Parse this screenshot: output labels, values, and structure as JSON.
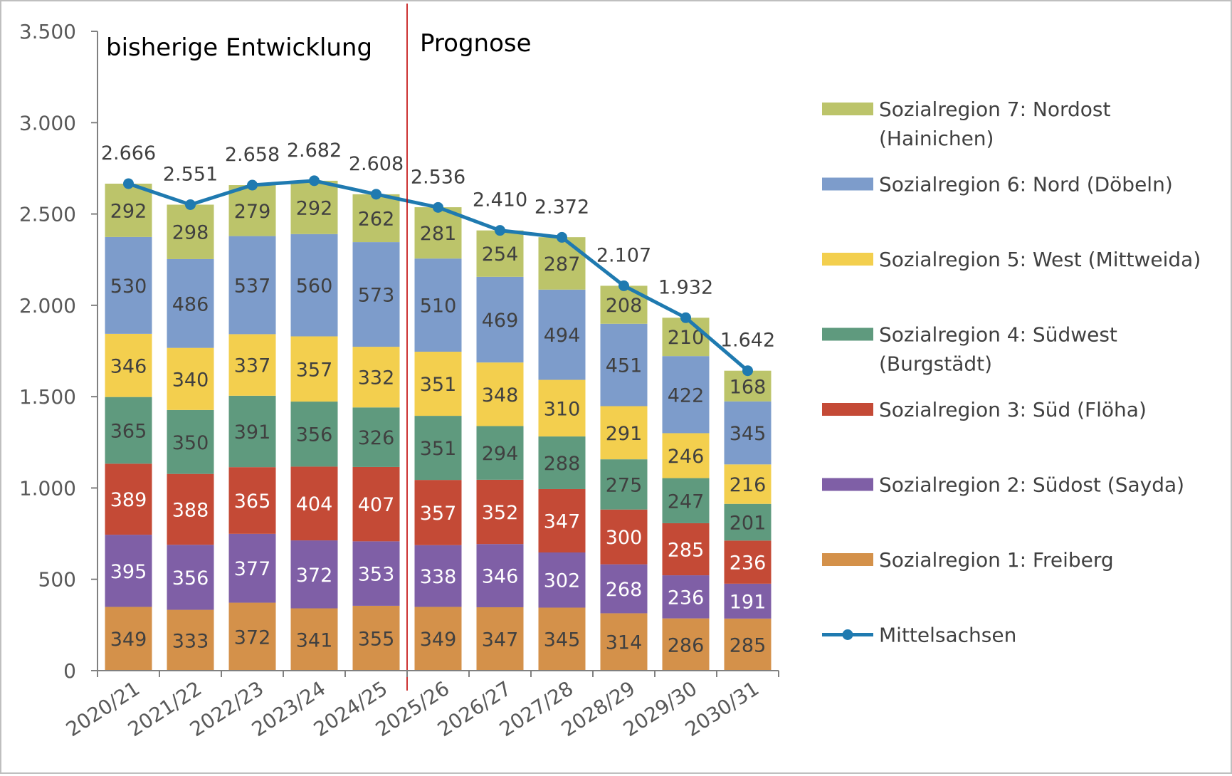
{
  "chart_data": {
    "type": "bar",
    "stacked": true,
    "categories": [
      "2020/21",
      "2021/22",
      "2022/23",
      "2023/24",
      "2024/25",
      "2025/26",
      "2026/27",
      "2027/28",
      "2028/29",
      "2029/30",
      "2030/31"
    ],
    "series": [
      {
        "name": "Sozialregion 1: Freiberg",
        "color": "#D4914A",
        "label_color": "#404040",
        "values": [
          349,
          333,
          372,
          341,
          355,
          349,
          347,
          345,
          314,
          286,
          285
        ]
      },
      {
        "name": "Sozialregion 2: Südost (Sayda)",
        "color": "#7F5FA6",
        "label_color": "#ffffff",
        "values": [
          395,
          356,
          377,
          372,
          353,
          338,
          346,
          302,
          268,
          236,
          191
        ]
      },
      {
        "name": "Sozialregion 3: Süd (Flöha)",
        "color": "#C44A36",
        "label_color": "#ffffff",
        "values": [
          389,
          388,
          365,
          404,
          407,
          357,
          352,
          347,
          300,
          285,
          236
        ]
      },
      {
        "name": "Sozialregion 4: Südwest (Burgstädt)",
        "color": "#5F9A7E",
        "label_color": "#404040",
        "values": [
          365,
          350,
          391,
          356,
          326,
          351,
          294,
          288,
          275,
          247,
          201
        ]
      },
      {
        "name": "Sozialregion 5: West (Mittweida)",
        "color": "#F3CF4E",
        "label_color": "#404040",
        "values": [
          346,
          340,
          337,
          357,
          332,
          351,
          348,
          310,
          291,
          246,
          216
        ]
      },
      {
        "name": "Sozialregion 6: Nord (Döbeln)",
        "color": "#7D9CCB",
        "label_color": "#404040",
        "values": [
          530,
          486,
          537,
          560,
          573,
          510,
          469,
          494,
          451,
          422,
          345
        ]
      },
      {
        "name": "Sozialregion 7: Nordost (Hainichen)",
        "color": "#BCC46A",
        "label_color": "#404040",
        "values": [
          292,
          298,
          279,
          292,
          262,
          281,
          254,
          287,
          208,
          210,
          168
        ]
      }
    ],
    "line": {
      "name": "Mittelsachsen",
      "color": "#1F7AB0",
      "values": [
        2666,
        2551,
        2658,
        2682,
        2608,
        2536,
        2410,
        2372,
        2107,
        1932,
        1642
      ],
      "labels": [
        "2.666",
        "2.551",
        "2.658",
        "2.682",
        "2.608",
        "2.536",
        "2.410",
        "2.372",
        "2.107",
        "1.932",
        "1.642"
      ]
    },
    "ylim": [
      0,
      3500
    ],
    "yticks": [
      0,
      500,
      1000,
      1500,
      2000,
      2500,
      3000,
      3500
    ],
    "ytick_labels": [
      "0",
      "500",
      "1.000",
      "1.500",
      "2.000",
      "2.500",
      "3.000",
      "3.500"
    ],
    "annotations": {
      "left": "bisherige Entwicklung",
      "right": "Prognose"
    },
    "divider_after_category": "2024/25",
    "legend_position": "right",
    "legend": [
      {
        "text": [
          "Sozialregion 7: Nordost",
          "(Hainichen)"
        ],
        "color": "#BCC46A",
        "kind": "bar"
      },
      {
        "text": [
          "Sozialregion 6: Nord (Döbeln)"
        ],
        "color": "#7D9CCB",
        "kind": "bar"
      },
      {
        "text": [
          "Sozialregion 5: West (Mittweida)"
        ],
        "color": "#F3CF4E",
        "kind": "bar"
      },
      {
        "text": [
          "Sozialregion 4: Südwest",
          "(Burgstädt)"
        ],
        "color": "#5F9A7E",
        "kind": "bar"
      },
      {
        "text": [
          "Sozialregion 3: Süd (Flöha)"
        ],
        "color": "#C44A36",
        "kind": "bar"
      },
      {
        "text": [
          "Sozialregion 2: Südost (Sayda)"
        ],
        "color": "#7F5FA6",
        "kind": "bar"
      },
      {
        "text": [
          "Sozialregion 1: Freiberg"
        ],
        "color": "#D4914A",
        "kind": "bar"
      },
      {
        "text": [
          "Mittelsachsen"
        ],
        "color": "#1F7AB0",
        "kind": "line"
      }
    ],
    "grid": false
  }
}
